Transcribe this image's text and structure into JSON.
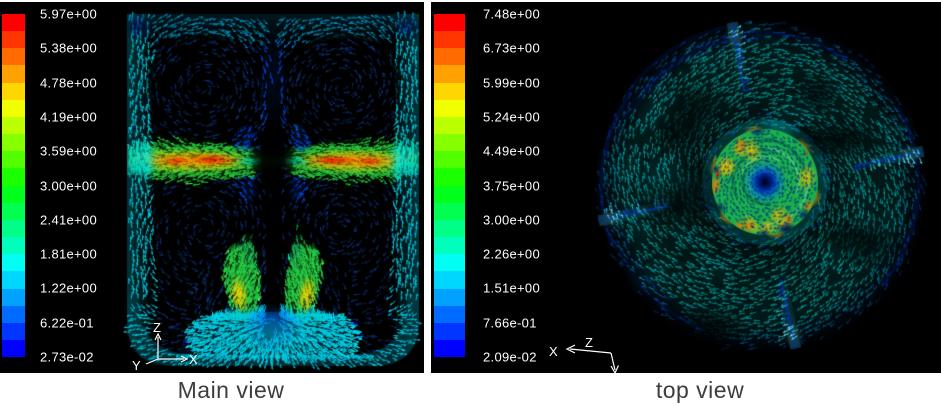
{
  "figure": {
    "panels": [
      {
        "id": "main",
        "caption": "Main view",
        "legend_ticks": [
          "5.97e+00",
          "5.38e+00",
          "4.78e+00",
          "4.19e+00",
          "3.59e+00",
          "3.00e+00",
          "2.41e+00",
          "1.81e+00",
          "1.22e+00",
          "6.22e-01",
          "2.73e-02"
        ],
        "axis_labels": {
          "up": "Z",
          "right": "X",
          "front": "Y"
        }
      },
      {
        "id": "top",
        "caption": "top view",
        "legend_ticks": [
          "7.48e+00",
          "6.73e+00",
          "5.99e+00",
          "5.24e+00",
          "4.49e+00",
          "3.75e+00",
          "3.00e+00",
          "2.26e+00",
          "1.51e+00",
          "7.66e-01",
          "2.09e-02"
        ],
        "axis_labels": {
          "origin": "Z",
          "left": "X"
        }
      }
    ],
    "colormap_bands_top_to_bottom": [
      "#ff0000",
      "#ff3600",
      "#ff6b00",
      "#ffa100",
      "#ffd700",
      "#f2ff00",
      "#bcff00",
      "#86ff00",
      "#51ff00",
      "#1bff00",
      "#00ff1b",
      "#00ff51",
      "#00ff86",
      "#00ffbc",
      "#00fff2",
      "#00d7ff",
      "#00a1ff",
      "#006bff",
      "#0036ff",
      "#0000ff"
    ],
    "colors": {
      "panel_bg": "#000000",
      "page_bg": "#ffffff",
      "tick_text": "#ffffff",
      "caption_text": "#3d3d3d",
      "triad": "#ffffff"
    }
  },
  "chart_data": [
    {
      "type": "vector-field",
      "title": "Main view",
      "legend_position": "left",
      "colorbar_levels": 20,
      "colorbar_tick_values": [
        5.97,
        5.38,
        4.78,
        4.19,
        3.59,
        3.0,
        2.41,
        1.81,
        1.22,
        0.622,
        0.0273
      ],
      "value_range": [
        0.0273,
        5.97
      ],
      "description": "Velocity vectors on a vertical mid-plane of a stirred tank: red/orange radial jets at the mid-height impeller, green/yellow downward plumes at the lower impeller, cyan jets along both walls, top surface and rounded bottom; dark recirculation cores above the impeller jets; central dark shaft."
    },
    {
      "type": "vector-field",
      "title": "top view",
      "legend_position": "left",
      "colorbar_levels": 20,
      "colorbar_tick_values": [
        7.48,
        6.73,
        5.99,
        5.24,
        4.49,
        3.75,
        3.0,
        2.26,
        1.51,
        0.766,
        0.0209
      ],
      "value_range": [
        0.0209,
        7.48
      ],
      "description": "Velocity vectors on a horizontal plane of the circular tank: swirling teal/cyan vectors fill the vessel, four bright cyan baffle streaks point radially inward (~90° apart), and the central impeller disk shows green body with yellow/orange rim patches around a dark-blue vortex core."
    }
  ]
}
